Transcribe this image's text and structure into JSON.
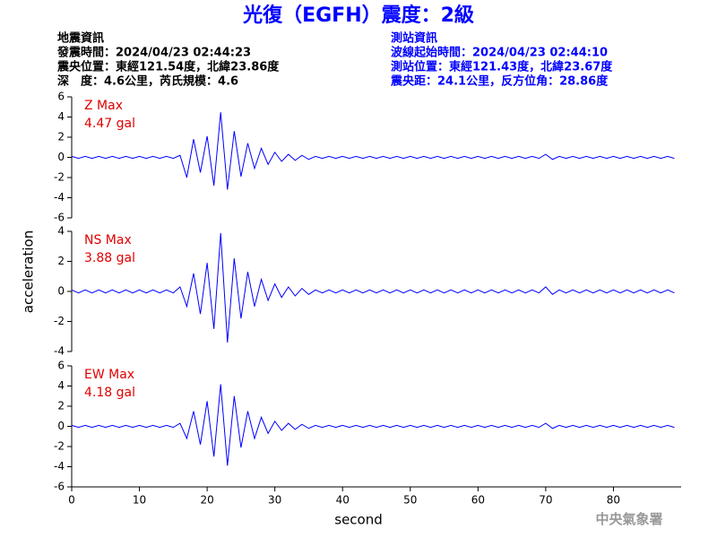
{
  "title": "光復（EGFH）震度：2級",
  "event_info": [
    "地震資訊",
    "發震時間：2024/04/23 02:44:23",
    "震央位置：東經121.54度，北緯23.86度",
    "深　度：4.6公里，芮氏規模：4.6"
  ],
  "station_info": [
    "測站資訊",
    "波線起始時間：2024/04/23 02:44:10",
    "測站位置：東經121.43度，北緯23.67度",
    "震央距：24.1公里，反方位角：28.86度"
  ],
  "watermark": "中央氣象署",
  "chart_data": [
    {
      "type": "line",
      "annotation": "Z Max",
      "peak": {
        "value": 4.47,
        "label": "4.47 gal"
      },
      "xlim": [
        0,
        90
      ],
      "ylim": [
        -6,
        6
      ],
      "yticks": [
        -6,
        -4,
        -2,
        0,
        2,
        4,
        6
      ],
      "x": [
        0,
        1,
        2,
        3,
        4,
        5,
        6,
        7,
        8,
        9,
        10,
        11,
        12,
        13,
        14,
        15,
        16,
        17,
        18,
        19,
        20,
        21,
        22,
        23,
        24,
        25,
        26,
        27,
        28,
        29,
        30,
        31,
        32,
        33,
        34,
        35,
        36,
        37,
        38,
        39,
        40,
        41,
        42,
        43,
        44,
        45,
        46,
        47,
        48,
        49,
        50,
        51,
        52,
        53,
        54,
        55,
        56,
        57,
        58,
        59,
        60,
        61,
        62,
        63,
        64,
        65,
        66,
        67,
        68,
        69,
        70,
        71,
        72,
        73,
        74,
        75,
        76,
        77,
        78,
        79,
        80,
        81,
        82,
        83,
        84,
        85,
        86,
        87,
        88,
        89
      ],
      "series": [
        {
          "name": "Z",
          "color": "#0000ff",
          "values": [
            0.1,
            -0.1,
            0.1,
            -0.1,
            0.1,
            -0.1,
            0.1,
            -0.1,
            0.1,
            -0.1,
            0.1,
            -0.1,
            0.1,
            -0.1,
            0.1,
            -0.1,
            0.2,
            -2.0,
            1.8,
            -1.5,
            2.1,
            -2.8,
            4.47,
            -3.2,
            2.6,
            -1.9,
            1.4,
            -1.1,
            0.9,
            -0.7,
            0.5,
            -0.4,
            0.3,
            -0.3,
            0.2,
            -0.2,
            0.1,
            -0.1,
            0.1,
            -0.1,
            0.1,
            -0.1,
            0.1,
            -0.1,
            0.1,
            -0.1,
            0.1,
            -0.1,
            0.1,
            -0.1,
            0.1,
            -0.1,
            0.1,
            -0.1,
            0.1,
            -0.1,
            0.1,
            -0.1,
            0.1,
            -0.1,
            0.1,
            -0.1,
            0.1,
            -0.1,
            0.1,
            -0.1,
            0.1,
            -0.1,
            0.1,
            -0.1,
            0.3,
            -0.2,
            0.1,
            -0.1,
            0.1,
            -0.1,
            0.1,
            -0.1,
            0.1,
            -0.1,
            0.1,
            -0.1,
            0.1,
            -0.1,
            0.1,
            -0.1,
            0.1,
            -0.1,
            0.1,
            -0.1
          ]
        }
      ]
    },
    {
      "type": "line",
      "annotation": "NS Max",
      "peak": {
        "value": 3.88,
        "label": "3.88 gal"
      },
      "ylabel": "acceleration",
      "xlim": [
        0,
        90
      ],
      "ylim": [
        -4,
        4
      ],
      "yticks": [
        -4,
        -2,
        0,
        2,
        4
      ],
      "x": [
        0,
        1,
        2,
        3,
        4,
        5,
        6,
        7,
        8,
        9,
        10,
        11,
        12,
        13,
        14,
        15,
        16,
        17,
        18,
        19,
        20,
        21,
        22,
        23,
        24,
        25,
        26,
        27,
        28,
        29,
        30,
        31,
        32,
        33,
        34,
        35,
        36,
        37,
        38,
        39,
        40,
        41,
        42,
        43,
        44,
        45,
        46,
        47,
        48,
        49,
        50,
        51,
        52,
        53,
        54,
        55,
        56,
        57,
        58,
        59,
        60,
        61,
        62,
        63,
        64,
        65,
        66,
        67,
        68,
        69,
        70,
        71,
        72,
        73,
        74,
        75,
        76,
        77,
        78,
        79,
        80,
        81,
        82,
        83,
        84,
        85,
        86,
        87,
        88,
        89
      ],
      "series": [
        {
          "name": "NS",
          "color": "#0000ff",
          "values": [
            0.1,
            -0.1,
            0.1,
            -0.1,
            0.1,
            -0.1,
            0.1,
            -0.1,
            0.1,
            -0.1,
            0.1,
            -0.1,
            0.1,
            -0.1,
            0.1,
            -0.1,
            0.3,
            -1.0,
            1.2,
            -1.5,
            1.9,
            -2.5,
            3.88,
            -3.4,
            2.2,
            -1.8,
            1.3,
            -1.0,
            0.8,
            -0.6,
            0.5,
            -0.4,
            0.3,
            -0.3,
            0.2,
            -0.2,
            0.1,
            -0.1,
            0.1,
            -0.1,
            0.1,
            -0.1,
            0.1,
            -0.1,
            0.1,
            -0.1,
            0.1,
            -0.1,
            0.1,
            -0.1,
            0.1,
            -0.1,
            0.1,
            -0.1,
            0.1,
            -0.1,
            0.1,
            -0.1,
            0.1,
            -0.1,
            0.1,
            -0.1,
            0.1,
            -0.1,
            0.1,
            -0.1,
            0.1,
            -0.1,
            0.1,
            -0.1,
            0.3,
            -0.2,
            0.1,
            -0.1,
            0.1,
            -0.1,
            0.1,
            -0.1,
            0.1,
            -0.1,
            0.1,
            -0.1,
            0.1,
            -0.1,
            0.1,
            -0.1,
            0.1,
            -0.1,
            0.1,
            -0.1
          ]
        }
      ]
    },
    {
      "type": "line",
      "annotation": "EW Max",
      "peak": {
        "value": 4.18,
        "label": "4.18 gal"
      },
      "xlabel": "second",
      "xlim": [
        0,
        90
      ],
      "xticks": [
        0,
        10,
        20,
        30,
        40,
        50,
        60,
        70,
        80
      ],
      "ylim": [
        -6,
        6
      ],
      "yticks": [
        -6,
        -4,
        -2,
        0,
        2,
        4,
        6
      ],
      "x": [
        0,
        1,
        2,
        3,
        4,
        5,
        6,
        7,
        8,
        9,
        10,
        11,
        12,
        13,
        14,
        15,
        16,
        17,
        18,
        19,
        20,
        21,
        22,
        23,
        24,
        25,
        26,
        27,
        28,
        29,
        30,
        31,
        32,
        33,
        34,
        35,
        36,
        37,
        38,
        39,
        40,
        41,
        42,
        43,
        44,
        45,
        46,
        47,
        48,
        49,
        50,
        51,
        52,
        53,
        54,
        55,
        56,
        57,
        58,
        59,
        60,
        61,
        62,
        63,
        64,
        65,
        66,
        67,
        68,
        69,
        70,
        71,
        72,
        73,
        74,
        75,
        76,
        77,
        78,
        79,
        80,
        81,
        82,
        83,
        84,
        85,
        86,
        87,
        88,
        89
      ],
      "series": [
        {
          "name": "EW",
          "color": "#0000ff",
          "values": [
            0.1,
            -0.1,
            0.1,
            -0.1,
            0.1,
            -0.1,
            0.1,
            -0.1,
            0.1,
            -0.1,
            0.1,
            -0.1,
            0.1,
            -0.1,
            0.1,
            -0.1,
            0.3,
            -1.2,
            1.5,
            -1.8,
            2.5,
            -3.0,
            4.18,
            -3.9,
            3.0,
            -2.1,
            1.5,
            -1.2,
            0.9,
            -0.7,
            0.5,
            -0.4,
            0.3,
            -0.3,
            0.2,
            -0.2,
            0.1,
            -0.1,
            0.1,
            -0.1,
            0.1,
            -0.1,
            0.1,
            -0.1,
            0.1,
            -0.1,
            0.1,
            -0.1,
            0.1,
            -0.1,
            0.1,
            -0.1,
            0.1,
            -0.1,
            0.1,
            -0.1,
            0.1,
            -0.1,
            0.1,
            -0.1,
            0.1,
            -0.1,
            0.1,
            -0.1,
            0.1,
            -0.1,
            0.1,
            -0.1,
            0.1,
            -0.1,
            0.3,
            -0.2,
            0.1,
            -0.1,
            0.1,
            -0.1,
            0.1,
            -0.1,
            0.1,
            -0.1,
            0.1,
            -0.1,
            0.1,
            -0.1,
            0.1,
            -0.1,
            0.1,
            -0.1,
            0.1,
            -0.1
          ]
        }
      ]
    }
  ]
}
